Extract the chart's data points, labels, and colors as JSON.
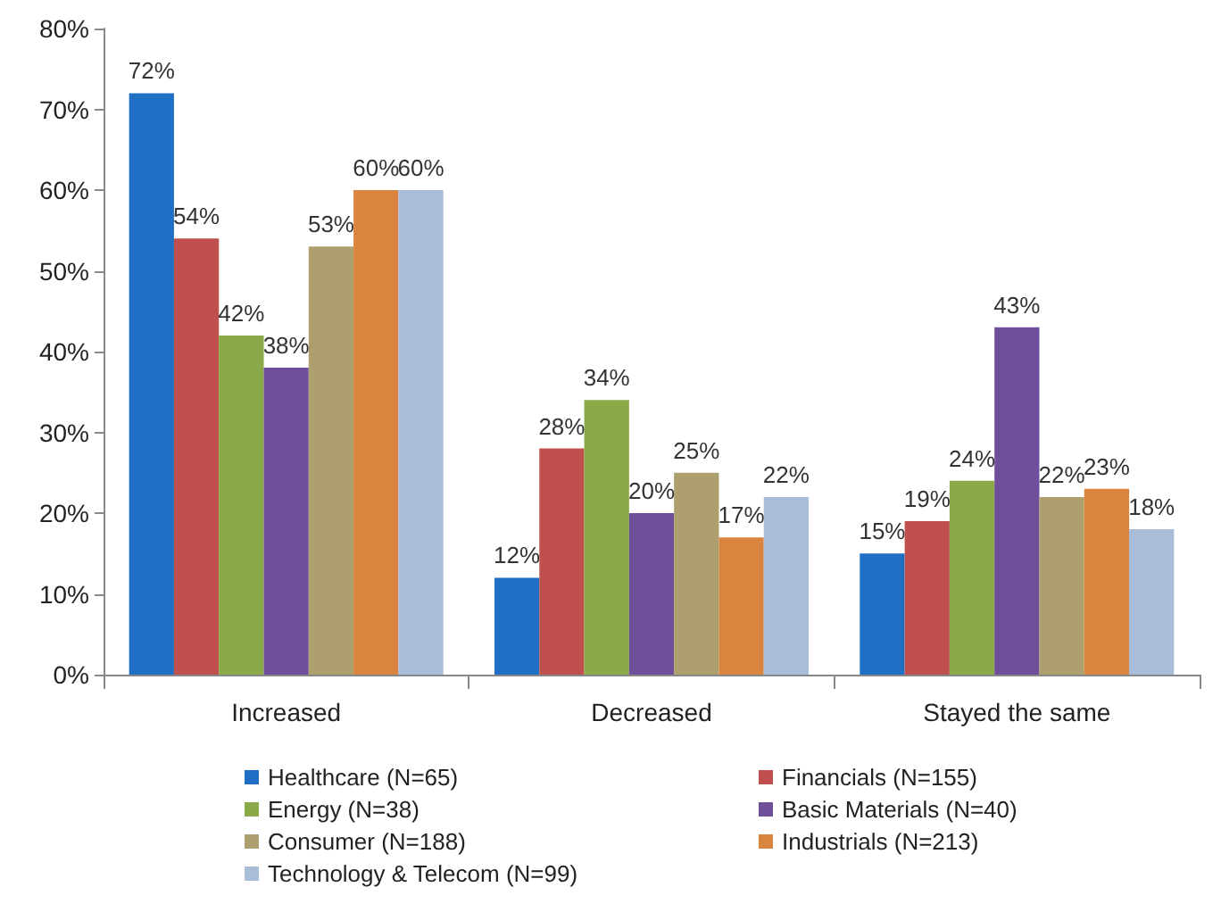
{
  "chart_data": {
    "type": "bar",
    "categories": [
      "Increased",
      "Decreased",
      "Stayed the same"
    ],
    "series": [
      {
        "name": "Healthcare (N=65)",
        "color": "#1f6fc5",
        "values": [
          72,
          12,
          15
        ],
        "value_labels": [
          "72%",
          "12%",
          "15%"
        ]
      },
      {
        "name": "Financials (N=155)",
        "color": "#c0504d",
        "values": [
          54,
          28,
          19
        ],
        "value_labels": [
          "54%",
          "28%",
          "19%"
        ]
      },
      {
        "name": "Energy (N=38)",
        "color": "#8aaa4a",
        "values": [
          42,
          34,
          24
        ],
        "value_labels": [
          "42%",
          "34%",
          "24%"
        ]
      },
      {
        "name": "Basic Materials (N=40)",
        "color": "#6f4e9a",
        "values": [
          38,
          20,
          43
        ],
        "value_labels": [
          "38%",
          "20%",
          "43%"
        ]
      },
      {
        "name": "Consumer (N=188)",
        "color": "#ada06e",
        "values": [
          53,
          25,
          22
        ],
        "value_labels": [
          "53%",
          "25%",
          "22%"
        ]
      },
      {
        "name": "Industrials (N=213)",
        "color": "#d9843f",
        "values": [
          60,
          17,
          23
        ],
        "value_labels": [
          "60%",
          "17%",
          "23%"
        ]
      },
      {
        "name": "Technology & Telecom (N=99)",
        "color": "#a9bcd8",
        "values": [
          60,
          22,
          18
        ],
        "value_labels": [
          "60%",
          "22%",
          "18%"
        ]
      }
    ],
    "ylim": [
      0,
      80
    ],
    "yticks": [
      {
        "value": 0,
        "label": "0%"
      },
      {
        "value": 10,
        "label": "10%"
      },
      {
        "value": 20,
        "label": "20%"
      },
      {
        "value": 30,
        "label": "30%"
      },
      {
        "value": 40,
        "label": "40%"
      },
      {
        "value": 50,
        "label": "50%"
      },
      {
        "value": 60,
        "label": "60%"
      },
      {
        "value": 70,
        "label": "70%"
      },
      {
        "value": 80,
        "label": "80%"
      }
    ],
    "grid": false,
    "legend": "bottom"
  }
}
